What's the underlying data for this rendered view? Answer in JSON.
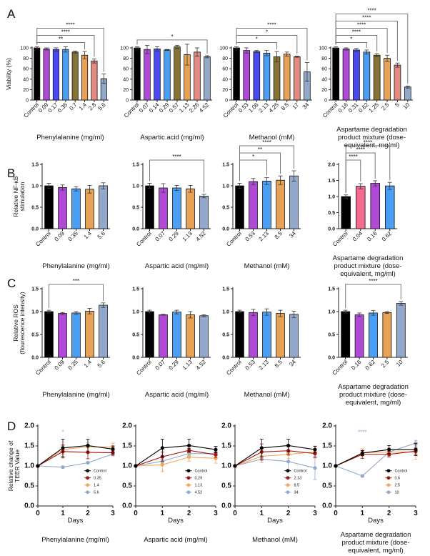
{
  "figure": {
    "panel_labels": [
      "A",
      "B",
      "C",
      "D"
    ]
  },
  "chart_data": [
    {
      "panel": "A",
      "type": "bar",
      "ylabel": "Viability (%)",
      "xlabel": "Phenylalanine (mg/ml)",
      "ylim": [
        0,
        100
      ],
      "yticks": [
        0,
        20,
        40,
        60,
        80,
        100
      ],
      "categories": [
        "Control",
        "0.09",
        "0.17",
        "0.35",
        "0.7",
        "1.4",
        "2.8",
        "5.6"
      ],
      "values": [
        100,
        98,
        97,
        97,
        92,
        86,
        75,
        41
      ],
      "errors": [
        2,
        2,
        3,
        5,
        2,
        7,
        4,
        9
      ],
      "colors": [
        "#000000",
        "#b04ad6",
        "#4a4af0",
        "#4a9ff5",
        "#857435",
        "#e8a255",
        "#e38a82",
        "#93a9cc"
      ],
      "significance": [
        {
          "label": "**",
          "to": "1.4"
        },
        {
          "label": "****",
          "to": "2.8"
        },
        {
          "label": "****",
          "to": "5.6"
        }
      ]
    },
    {
      "panel": "A",
      "type": "bar",
      "ylabel": "",
      "xlabel": "Aspartic acid (mg/ml)",
      "ylim": [
        0,
        100
      ],
      "yticks": [
        0,
        20,
        40,
        60,
        80,
        100
      ],
      "categories": [
        "Control",
        "0.07",
        "0.14",
        "0.29",
        "0.57",
        "1.13",
        "2.26",
        "4.52"
      ],
      "values": [
        100,
        97,
        98,
        96,
        102,
        87,
        92,
        83
      ],
      "errors": [
        2,
        8,
        4,
        1,
        3,
        20,
        8,
        2
      ],
      "colors": [
        "#000000",
        "#b04ad6",
        "#4a4af0",
        "#4a9ff5",
        "#857435",
        "#e8a255",
        "#e38a82",
        "#93a9cc"
      ],
      "significance": [
        {
          "label": "*",
          "to": "4.52"
        }
      ]
    },
    {
      "panel": "A",
      "type": "bar",
      "ylabel": "",
      "xlabel": "Methanol (mM)",
      "ylim": [
        0,
        100
      ],
      "yticks": [
        0,
        20,
        40,
        60,
        80,
        100
      ],
      "categories": [
        "Control",
        "0.53",
        "1.06",
        "2.13",
        "4.25",
        "8.5",
        "17",
        "34"
      ],
      "values": [
        100,
        95,
        93,
        90,
        83,
        88,
        83,
        54
      ],
      "errors": [
        2,
        5,
        2,
        5,
        10,
        4,
        1,
        18
      ],
      "colors": [
        "#000000",
        "#b04ad6",
        "#4a4af0",
        "#4a9ff5",
        "#857435",
        "#e8a255",
        "#e38a82",
        "#93a9cc"
      ],
      "significance": [
        {
          "label": "*",
          "to": "4.25"
        },
        {
          "label": "*",
          "to": "17"
        },
        {
          "label": "****",
          "to": "34"
        }
      ]
    },
    {
      "panel": "A",
      "type": "bar",
      "ylabel": "",
      "xlabel": "Aspartame degradation product mixture (dose-equivalent, mg/ml)",
      "ylim": [
        0,
        100
      ],
      "yticks": [
        0,
        20,
        40,
        60,
        80,
        100
      ],
      "categories": [
        "Control",
        "0.16",
        "0.31",
        "0.62",
        "1.25",
        "2.5",
        "5",
        "10"
      ],
      "values": [
        100,
        98,
        96,
        92,
        86,
        80,
        67,
        25
      ],
      "errors": [
        2,
        2,
        3,
        4,
        3,
        6,
        4,
        2
      ],
      "colors": [
        "#000000",
        "#b04ad6",
        "#4a4af0",
        "#4a9ff5",
        "#857435",
        "#e8a255",
        "#e38a82",
        "#93a9cc"
      ],
      "significance": [
        {
          "label": "*",
          "to": "0.62"
        },
        {
          "label": "****",
          "to": "1.25"
        },
        {
          "label": "****",
          "to": "2.5"
        },
        {
          "label": "****",
          "to": "5"
        },
        {
          "label": "****",
          "to": "10"
        }
      ]
    },
    {
      "panel": "B",
      "type": "bar",
      "ylabel": "Relative NF-κB stimulation",
      "xlabel": "Phenylalanine (mg/ml)",
      "ylim": [
        0,
        1.5
      ],
      "yticks": [
        0.0,
        0.5,
        1.0,
        1.5
      ],
      "categories": [
        "Control",
        "0.09",
        "0.35",
        "1.4",
        "5.6"
      ],
      "values": [
        1.0,
        0.96,
        0.93,
        0.92,
        1.0
      ],
      "errors": [
        0.06,
        0.06,
        0.05,
        0.09,
        0.07
      ],
      "colors": [
        "#000000",
        "#b04ad6",
        "#4a9ff5",
        "#e8a255",
        "#93a9cc"
      ],
      "significance": []
    },
    {
      "panel": "B",
      "type": "bar",
      "ylabel": "",
      "xlabel": "Aspartic acid (mg/ml)",
      "ylim": [
        0,
        1.5
      ],
      "yticks": [
        0.0,
        0.5,
        1.0,
        1.5
      ],
      "categories": [
        "Control",
        "0.07",
        "0.29",
        "1.13",
        "4.52"
      ],
      "values": [
        1.0,
        0.95,
        0.95,
        0.93,
        0.76
      ],
      "errors": [
        0.06,
        0.1,
        0.06,
        0.08,
        0.04
      ],
      "colors": [
        "#000000",
        "#b04ad6",
        "#4a9ff5",
        "#e8a255",
        "#93a9cc"
      ],
      "significance": [
        {
          "label": "****",
          "to": "4.52"
        }
      ]
    },
    {
      "panel": "B",
      "type": "bar",
      "ylabel": "",
      "xlabel": "Methanol (mM)",
      "ylim": [
        0,
        1.5
      ],
      "yticks": [
        0.0,
        0.5,
        1.0,
        1.5
      ],
      "categories": [
        "Control",
        "0.53",
        "2.13",
        "8.5",
        "34"
      ],
      "values": [
        1.0,
        1.1,
        1.11,
        1.13,
        1.23
      ],
      "errors": [
        0.06,
        0.07,
        0.08,
        0.1,
        0.12
      ],
      "colors": [
        "#000000",
        "#b04ad6",
        "#4a9ff5",
        "#e8a255",
        "#93a9cc"
      ],
      "significance": [
        {
          "label": "*",
          "to": "2.13"
        },
        {
          "label": "**",
          "to": "8.5"
        },
        {
          "label": "****",
          "to": "34"
        }
      ]
    },
    {
      "panel": "B",
      "type": "bar",
      "ylabel": "",
      "xlabel": "Aspartame degradation product mixture (dose-equivalent, mg/ml)",
      "ylim": [
        0,
        2.0
      ],
      "yticks": [
        0.0,
        0.5,
        1.0,
        1.5,
        2.0
      ],
      "categories": [
        "Control",
        "0.04",
        "0.16",
        "0.62"
      ],
      "values": [
        1.0,
        1.32,
        1.41,
        1.33
      ],
      "errors": [
        0.05,
        0.08,
        0.08,
        0.11
      ],
      "colors": [
        "#000000",
        "#f56a8f",
        "#b04ad6",
        "#4a9ff5"
      ],
      "significance": [
        {
          "label": "****",
          "to": "0.04"
        },
        {
          "label": "****",
          "to": "0.16"
        },
        {
          "label": "****",
          "to": "0.62"
        }
      ]
    },
    {
      "panel": "C",
      "type": "bar",
      "ylabel": "Relative ROS (flourescence intensity)",
      "xlabel": "Phenylalanine (mg/ml)",
      "ylim": [
        0,
        1.5
      ],
      "yticks": [
        0.0,
        0.5,
        1.0,
        1.5
      ],
      "categories": [
        "Control",
        "0.09",
        "0.35",
        "1.4",
        "5.6"
      ],
      "values": [
        1.0,
        0.96,
        0.97,
        1.01,
        1.14
      ],
      "errors": [
        0.03,
        0.02,
        0.03,
        0.06,
        0.05
      ],
      "colors": [
        "#000000",
        "#b04ad6",
        "#4a9ff5",
        "#e8a255",
        "#93a9cc"
      ],
      "significance": [
        {
          "label": "***",
          "to": "5.6"
        }
      ]
    },
    {
      "panel": "C",
      "type": "bar",
      "ylabel": "",
      "xlabel": "Aspartic acid (mg/ml)",
      "ylim": [
        0,
        1.5
      ],
      "yticks": [
        0.0,
        0.5,
        1.0,
        1.5
      ],
      "categories": [
        "Control",
        "0.07",
        "0.29",
        "1.13",
        "4.52"
      ],
      "values": [
        1.0,
        0.93,
        0.99,
        0.93,
        0.91
      ],
      "errors": [
        0.03,
        0.01,
        0.04,
        0.07,
        0.02
      ],
      "colors": [
        "#000000",
        "#b04ad6",
        "#4a9ff5",
        "#e8a255",
        "#93a9cc"
      ],
      "significance": []
    },
    {
      "panel": "C",
      "type": "bar",
      "ylabel": "",
      "xlabel": "Methanol (mM)",
      "ylim": [
        0,
        1.5
      ],
      "yticks": [
        0.0,
        0.5,
        1.0,
        1.5
      ],
      "categories": [
        "Control",
        "0.53",
        "2.13",
        "8.5",
        "34"
      ],
      "values": [
        1.0,
        0.98,
        0.99,
        0.96,
        0.94
      ],
      "errors": [
        0.03,
        0.07,
        0.07,
        0.07,
        0.07
      ],
      "colors": [
        "#000000",
        "#b04ad6",
        "#4a9ff5",
        "#e8a255",
        "#93a9cc"
      ],
      "significance": []
    },
    {
      "panel": "C",
      "type": "bar",
      "ylabel": "",
      "xlabel": "Aspartame degradation product mixture (dose-equivalent, mg/ml)",
      "ylim": [
        0,
        1.5
      ],
      "yticks": [
        0.0,
        0.5,
        1.0,
        1.5
      ],
      "categories": [
        "Control",
        "0.16",
        "0.62",
        "2.5",
        "10"
      ],
      "values": [
        1.0,
        0.93,
        0.97,
        0.98,
        1.18
      ],
      "errors": [
        0.03,
        0.04,
        0.05,
        0.02,
        0.04
      ],
      "colors": [
        "#000000",
        "#b04ad6",
        "#4a9ff5",
        "#e8a255",
        "#93a9cc"
      ],
      "significance": [
        {
          "label": "****",
          "to": "10"
        }
      ]
    },
    {
      "panel": "D",
      "type": "line",
      "ylabel": "Relative change of TEER Value",
      "xlabel": "Days",
      "title": "Phenylalanine (mg/ml)",
      "xlim": [
        0,
        3
      ],
      "ylim": [
        0,
        2.0
      ],
      "x": [
        0,
        1,
        2,
        3
      ],
      "yticks": [
        0.0,
        0.5,
        1.0,
        1.5,
        2.0
      ],
      "annotation": {
        "label": "*",
        "x": 1,
        "y": 1.87,
        "color": "#93a9cc"
      },
      "series": [
        {
          "name": "Control",
          "color": "#000000",
          "values": [
            1.0,
            1.45,
            1.51,
            1.42
          ],
          "errors": [
            0,
            0.22,
            0.16,
            0.08
          ]
        },
        {
          "name": "0.35",
          "color": "#a80f0f",
          "values": [
            1.0,
            1.36,
            1.34,
            1.33
          ],
          "errors": [
            0,
            0.16,
            0.16,
            0.06
          ]
        },
        {
          "name": "1.4",
          "color": "#f0a860",
          "values": [
            1.0,
            1.41,
            1.48,
            1.47
          ],
          "errors": [
            0,
            0.12,
            0.1,
            0.1
          ]
        },
        {
          "name": "5.6",
          "color": "#93a9cc",
          "values": [
            1.0,
            0.97,
            1.08,
            1.3
          ],
          "errors": [
            0,
            0.02,
            0.02,
            0.05
          ]
        }
      ]
    },
    {
      "panel": "D",
      "type": "line",
      "ylabel": "",
      "xlabel": "Days",
      "title": "Aspartic acid (mg/ml)",
      "xlim": [
        0,
        3
      ],
      "ylim": [
        0,
        2.0
      ],
      "x": [
        0,
        1,
        2,
        3
      ],
      "yticks": [
        0.0,
        0.5,
        1.0,
        1.5,
        2.0
      ],
      "series": [
        {
          "name": "Control",
          "color": "#000000",
          "values": [
            1.0,
            1.45,
            1.51,
            1.41
          ],
          "errors": [
            0,
            0.22,
            0.16,
            0.08
          ]
        },
        {
          "name": "0.29",
          "color": "#a80f0f",
          "values": [
            1.0,
            1.23,
            1.39,
            1.28
          ],
          "errors": [
            0,
            0.12,
            0.05,
            0.07
          ]
        },
        {
          "name": "1.13",
          "color": "#f0a860",
          "values": [
            1.0,
            1.03,
            1.22,
            1.19
          ],
          "errors": [
            0,
            0.17,
            0.1,
            0.12
          ]
        },
        {
          "name": "4.52",
          "color": "#93a9cc",
          "values": [
            1.0,
            1.12,
            1.31,
            1.31
          ],
          "errors": [
            0,
            0.05,
            0.05,
            0.06
          ]
        }
      ]
    },
    {
      "panel": "D",
      "type": "line",
      "ylabel": "",
      "xlabel": "Days",
      "title": "Methanol (mM)",
      "xlim": [
        0,
        3
      ],
      "ylim": [
        0,
        2.0
      ],
      "x": [
        0,
        1,
        2,
        3
      ],
      "yticks": [
        0.0,
        0.5,
        1.0,
        1.5,
        2.0
      ],
      "series": [
        {
          "name": "Control",
          "color": "#000000",
          "values": [
            1.0,
            1.45,
            1.51,
            1.41
          ],
          "errors": [
            0,
            0.22,
            0.16,
            0.08
          ]
        },
        {
          "name": "2.13",
          "color": "#a80f0f",
          "values": [
            1.0,
            1.35,
            1.38,
            1.31
          ],
          "errors": [
            0,
            0.2,
            0.1,
            0.1
          ]
        },
        {
          "name": "8.5",
          "color": "#f0a860",
          "values": [
            1.0,
            1.24,
            1.29,
            1.35
          ],
          "errors": [
            0,
            0.15,
            0.1,
            0.15
          ]
        },
        {
          "name": "34",
          "color": "#93a9cc",
          "values": [
            1.0,
            1.17,
            1.11,
            0.95
          ],
          "errors": [
            0,
            0.08,
            0.2,
            0.29
          ]
        }
      ]
    },
    {
      "panel": "D",
      "type": "line",
      "ylabel": "",
      "xlabel": "Days",
      "title": "Aspartame degradation product mixture (dose-equivalent, mg/ml)",
      "xlim": [
        0,
        3
      ],
      "ylim": [
        0,
        2.0
      ],
      "x": [
        0,
        1,
        2,
        3
      ],
      "yticks": [
        0.0,
        0.5,
        1.0,
        1.5,
        2.0
      ],
      "annotation": {
        "label": "****",
        "x": 1,
        "y": 1.87,
        "color": "#93a9cc"
      },
      "series": [
        {
          "name": "Control",
          "color": "#000000",
          "values": [
            1.0,
            1.32,
            1.41,
            1.41
          ],
          "errors": [
            0,
            0.06,
            0.1,
            0.15
          ]
        },
        {
          "name": "0.6",
          "color": "#a80f0f",
          "values": [
            1.0,
            1.29,
            1.29,
            1.37
          ],
          "errors": [
            0,
            0.1,
            0.07,
            0.08
          ]
        },
        {
          "name": "2.5",
          "color": "#f0a860",
          "values": [
            1.0,
            1.33,
            1.35,
            1.35
          ],
          "errors": [
            0,
            0.1,
            0.1,
            0.18
          ]
        },
        {
          "name": "10",
          "color": "#93a9cc",
          "values": [
            1.0,
            0.75,
            1.35,
            1.57
          ],
          "errors": [
            0,
            0.02,
            0.05,
            0.07
          ]
        }
      ]
    }
  ]
}
